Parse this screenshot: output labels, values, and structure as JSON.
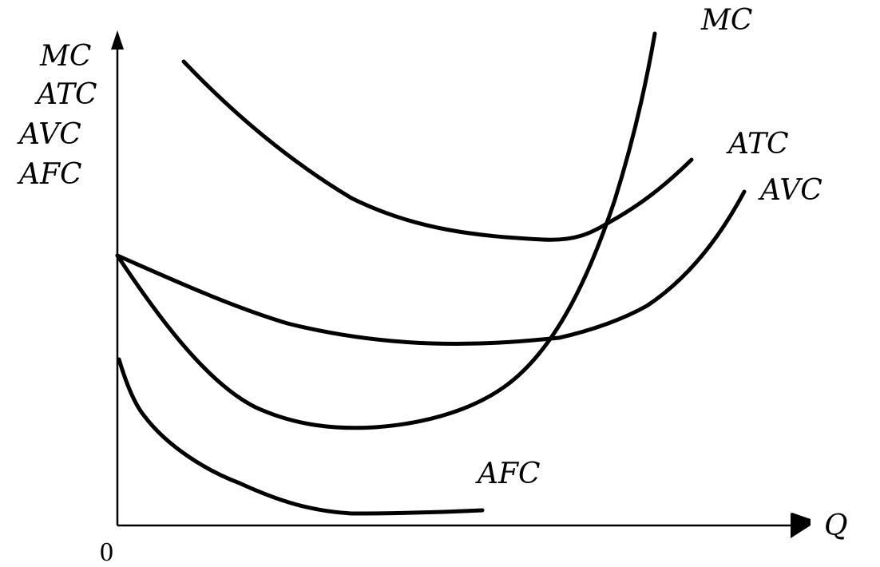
{
  "y_axis_labels": [
    "MC",
    "ATC",
    "AVC",
    "AFC"
  ],
  "x_axis_label": "Q",
  "origin_label": "0",
  "curves": {
    "mc": "MC",
    "atc": "ATC",
    "avc": "AVC",
    "afc": "AFC"
  },
  "colors": {
    "ink": "#000000",
    "background": "#ffffff"
  }
}
